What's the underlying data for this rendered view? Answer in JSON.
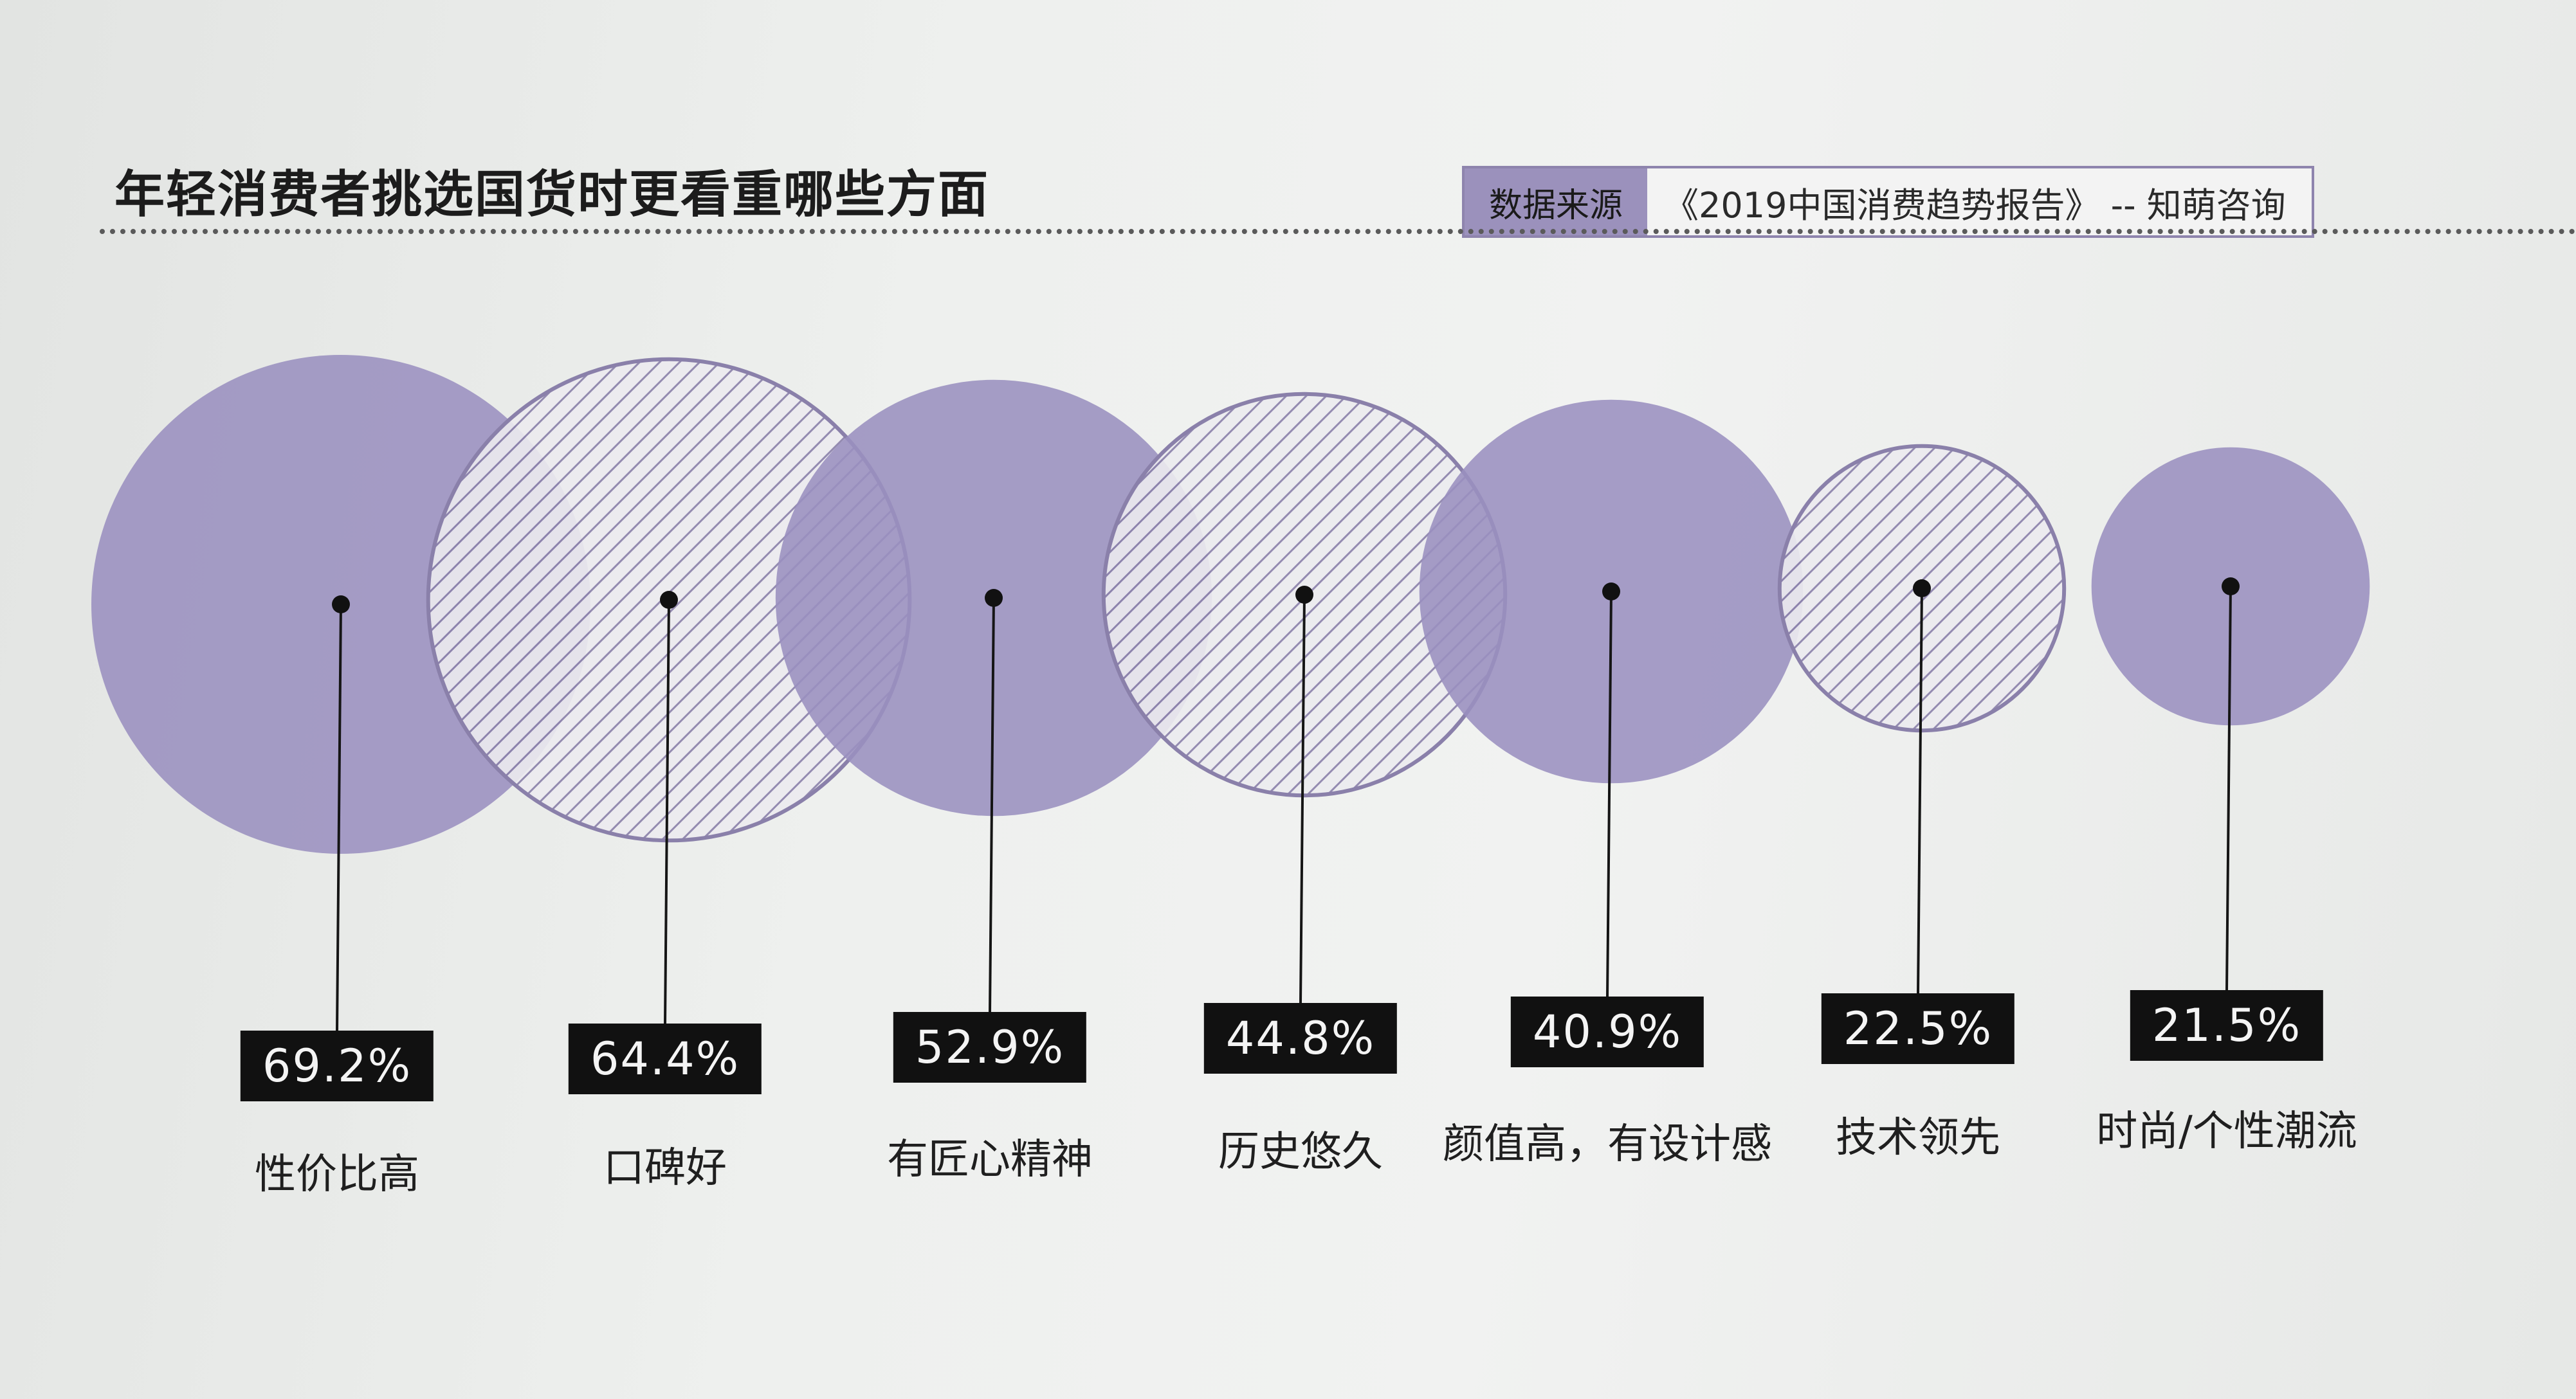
{
  "header": {
    "title": "年轻消费者挑选国货时更看重哪些方面",
    "source_label": "数据来源",
    "source_text": "《2019中国消费趋势报告》 -- 知萌咨询"
  },
  "colors": {
    "solid_fill": "#9a8fbf",
    "hatch_stroke": "#8a80aa",
    "label_bg": "#111111"
  },
  "chart_data": {
    "type": "bubble",
    "title": "年轻消费者挑选国货时更看重哪些方面",
    "categories": [
      "性价比高",
      "口碑好",
      "有匠心精神",
      "历史悠久",
      "颜值高，有设计感",
      "技术领先",
      "时尚/个性潮流"
    ],
    "values": [
      69.2,
      64.4,
      52.9,
      44.8,
      40.9,
      22.5,
      21.5
    ],
    "value_labels": [
      "69.2%",
      "64.4%",
      "52.9%",
      "44.8%",
      "40.9%",
      "22.5%",
      "21.5%"
    ],
    "styles": [
      "solid",
      "hatched",
      "solid",
      "hatched",
      "solid",
      "hatched",
      "solid"
    ],
    "unit": "%"
  }
}
